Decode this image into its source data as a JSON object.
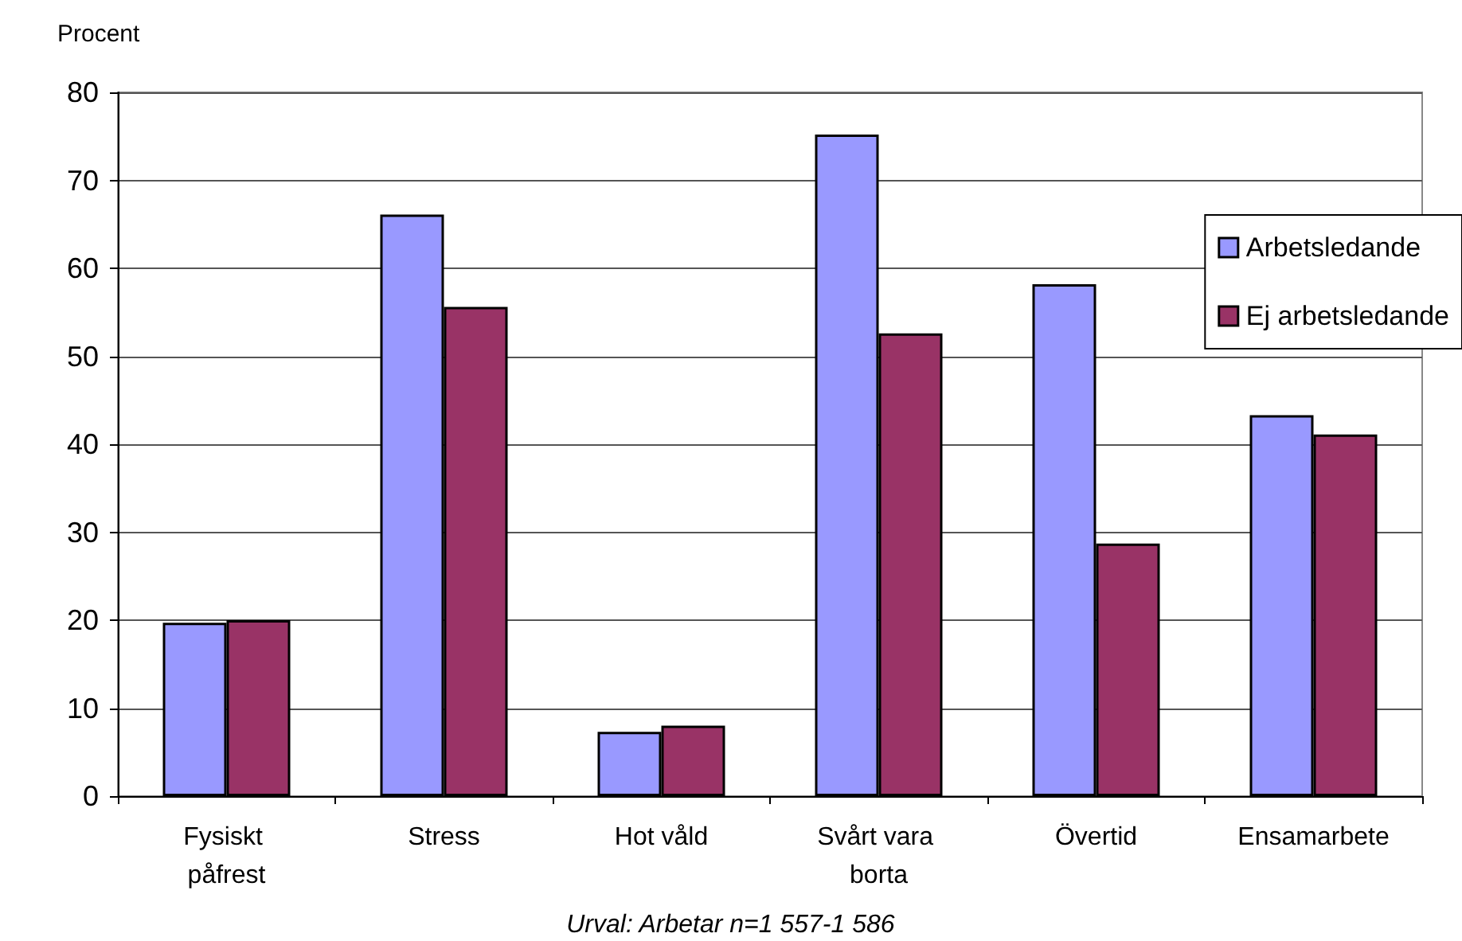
{
  "chart_data": {
    "type": "bar",
    "ylabel": "Procent",
    "categories": [
      "Fysiskt påfrest",
      "Stress",
      "Hot våld",
      "Svårt vara borta",
      "Övertid",
      "Ensamarbete"
    ],
    "series": [
      {
        "name": "Arbetsledande",
        "color": "#9999ff",
        "values": [
          19.7,
          66.1,
          7.3,
          75.2,
          58.2,
          43.3
        ]
      },
      {
        "name": "Ej arbetsledande",
        "color": "#993366",
        "values": [
          20.0,
          55.6,
          8.0,
          52.6,
          28.7,
          41.1
        ]
      }
    ],
    "ylim": [
      0,
      80
    ],
    "yticks": [
      0,
      10,
      20,
      30,
      40,
      50,
      60,
      70,
      80
    ],
    "grid": "y",
    "legend": "right",
    "annotations": [
      "Urval: Arbetar n=1 557-1 586"
    ]
  }
}
